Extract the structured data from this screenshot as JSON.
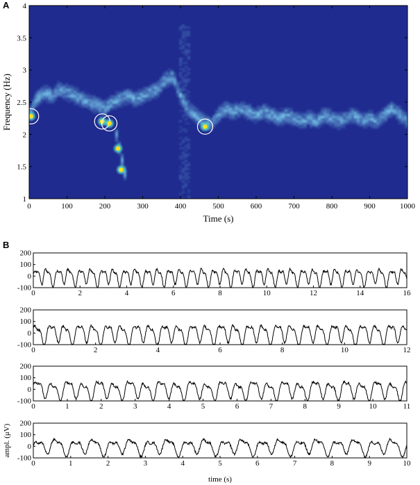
{
  "panel_a": {
    "label": "A",
    "xlabel": "Time (s)",
    "ylabel": "Frequency (Hz)"
  },
  "panel_b": {
    "label": "B",
    "ylabel": "ampl. (μV)",
    "xlabel": "time (s)"
  },
  "colors": {
    "background": "#1f2b8f",
    "ridge": "#4a8ad8",
    "hot": "#ffe018",
    "trace": "#000000"
  },
  "chart_data": [
    {
      "type": "heatmap",
      "title": "",
      "xlabel": "Time (s)",
      "ylabel": "Frequency (Hz)",
      "xlim": [
        0,
        1000
      ],
      "ylim": [
        1,
        4
      ],
      "x_ticks": [
        0,
        100,
        200,
        300,
        400,
        500,
        600,
        700,
        800,
        900,
        1000
      ],
      "y_ticks": [
        1,
        1.5,
        2,
        2.5,
        3,
        3.5,
        4
      ],
      "ridge": {
        "x": [
          0,
          20,
          40,
          60,
          80,
          100,
          120,
          140,
          160,
          180,
          200,
          220,
          240,
          260,
          280,
          300,
          320,
          340,
          360,
          380,
          400,
          420,
          440,
          460,
          480,
          500,
          520,
          540,
          560,
          580,
          600,
          620,
          640,
          660,
          680,
          700,
          720,
          740,
          760,
          780,
          800,
          820,
          840,
          860,
          880,
          900,
          920,
          940,
          960,
          980,
          1000
        ],
        "y": [
          2.3,
          2.55,
          2.65,
          2.6,
          2.7,
          2.65,
          2.6,
          2.55,
          2.5,
          2.45,
          2.4,
          2.5,
          2.55,
          2.6,
          2.55,
          2.6,
          2.65,
          2.7,
          2.85,
          2.9,
          2.6,
          2.4,
          2.3,
          2.2,
          2.15,
          2.3,
          2.4,
          2.35,
          2.4,
          2.35,
          2.3,
          2.35,
          2.3,
          2.25,
          2.3,
          2.25,
          2.2,
          2.25,
          2.2,
          2.3,
          2.25,
          2.2,
          2.25,
          2.3,
          2.2,
          2.25,
          2.2,
          2.3,
          2.4,
          2.3,
          2.2
        ]
      },
      "hot_spots": [
        {
          "x": 5,
          "y": 2.28,
          "circled": true
        },
        {
          "x": 193,
          "y": 2.2,
          "circled": true
        },
        {
          "x": 212,
          "y": 2.17,
          "circled": true
        },
        {
          "x": 235,
          "y": 1.78,
          "circled": false
        },
        {
          "x": 243,
          "y": 1.45,
          "circled": false
        },
        {
          "x": 465,
          "y": 2.12,
          "circled": true
        }
      ]
    },
    {
      "type": "line",
      "xlabel": "",
      "ylabel": "",
      "xlim": [
        0,
        16
      ],
      "ylim": [
        -100,
        200
      ],
      "x_ticks": [
        0,
        2,
        4,
        6,
        8,
        10,
        12,
        14,
        16
      ],
      "y_ticks": [
        -100,
        0,
        100,
        200
      ],
      "dominant_freq_hz": 2.1,
      "amplitude": 60
    },
    {
      "type": "line",
      "xlabel": "",
      "ylabel": "",
      "xlim": [
        0,
        12
      ],
      "ylim": [
        -100,
        200
      ],
      "x_ticks": [
        0,
        2,
        4,
        6,
        8,
        10,
        12
      ],
      "y_ticks": [
        -100,
        0,
        100,
        200
      ],
      "dominant_freq_hz": 2.2,
      "amplitude": 70
    },
    {
      "type": "line",
      "xlabel": "",
      "ylabel": "",
      "xlim": [
        0,
        11
      ],
      "ylim": [
        -100,
        200
      ],
      "x_ticks": [
        0,
        1,
        2,
        3,
        4,
        5,
        6,
        7,
        8,
        9,
        10,
        11
      ],
      "y_ticks": [
        -100,
        0,
        100,
        200
      ],
      "dominant_freq_hz": 2.2,
      "amplitude": 65
    },
    {
      "type": "line",
      "xlabel": "time (s)",
      "ylabel": "ampl. (μV)",
      "xlim": [
        0,
        10
      ],
      "ylim": [
        -100,
        200
      ],
      "x_ticks": [
        0,
        1,
        2,
        3,
        4,
        5,
        6,
        7,
        8,
        9,
        10
      ],
      "y_ticks": [
        -100,
        0,
        100,
        200
      ],
      "dominant_freq_hz": 2.0,
      "amplitude": 55
    }
  ]
}
